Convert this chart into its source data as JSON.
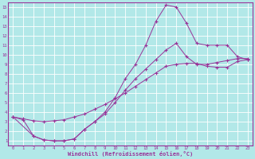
{
  "xlabel": "Windchill (Refroidissement éolien,°C)",
  "bg_color": "#b2e8e8",
  "grid_color": "#ffffff",
  "line_color": "#993399",
  "x_ticks": [
    0,
    1,
    2,
    3,
    4,
    5,
    6,
    7,
    8,
    9,
    10,
    11,
    12,
    13,
    14,
    15,
    16,
    17,
    18,
    19,
    20,
    21,
    22,
    23
  ],
  "y_ticks": [
    1,
    2,
    3,
    4,
    5,
    6,
    7,
    8,
    9,
    10,
    11,
    12,
    13,
    14,
    15
  ],
  "xlim": [
    -0.5,
    23.5
  ],
  "ylim": [
    0.5,
    15.5
  ],
  "line1_x": [
    0,
    1,
    2,
    3,
    4,
    5,
    6,
    7,
    8,
    9,
    10,
    11,
    12,
    13,
    14,
    15,
    16,
    17,
    18,
    19,
    20,
    21,
    22,
    23
  ],
  "line1_y": [
    3.5,
    3.3,
    3.1,
    3.0,
    3.1,
    3.2,
    3.5,
    3.8,
    4.3,
    4.8,
    5.4,
    6.0,
    6.7,
    7.4,
    8.1,
    8.8,
    9.0,
    9.1,
    9.1,
    8.8,
    8.7,
    8.7,
    9.3,
    9.5
  ],
  "line2_x": [
    0,
    1,
    2,
    3,
    4,
    5,
    6,
    7,
    8,
    9,
    10,
    11,
    12,
    13,
    14,
    15,
    16,
    17,
    18,
    19,
    20,
    21,
    22,
    23
  ],
  "line2_y": [
    3.5,
    3.2,
    1.5,
    1.1,
    1.0,
    1.0,
    1.2,
    2.2,
    3.0,
    4.0,
    5.5,
    7.5,
    9.0,
    11.0,
    13.5,
    15.2,
    15.0,
    13.3,
    11.2,
    11.0,
    11.0,
    11.0,
    9.8,
    9.5
  ],
  "line3_x": [
    0,
    2,
    3,
    4,
    5,
    6,
    7,
    8,
    9,
    10,
    11,
    12,
    13,
    14,
    15,
    16,
    17,
    18,
    19,
    20,
    21,
    22,
    23
  ],
  "line3_y": [
    3.5,
    1.5,
    1.1,
    1.0,
    1.0,
    1.2,
    2.2,
    3.0,
    3.8,
    5.0,
    6.3,
    7.5,
    8.5,
    9.5,
    10.5,
    11.2,
    9.8,
    9.0,
    9.0,
    9.2,
    9.4,
    9.6,
    9.6
  ]
}
